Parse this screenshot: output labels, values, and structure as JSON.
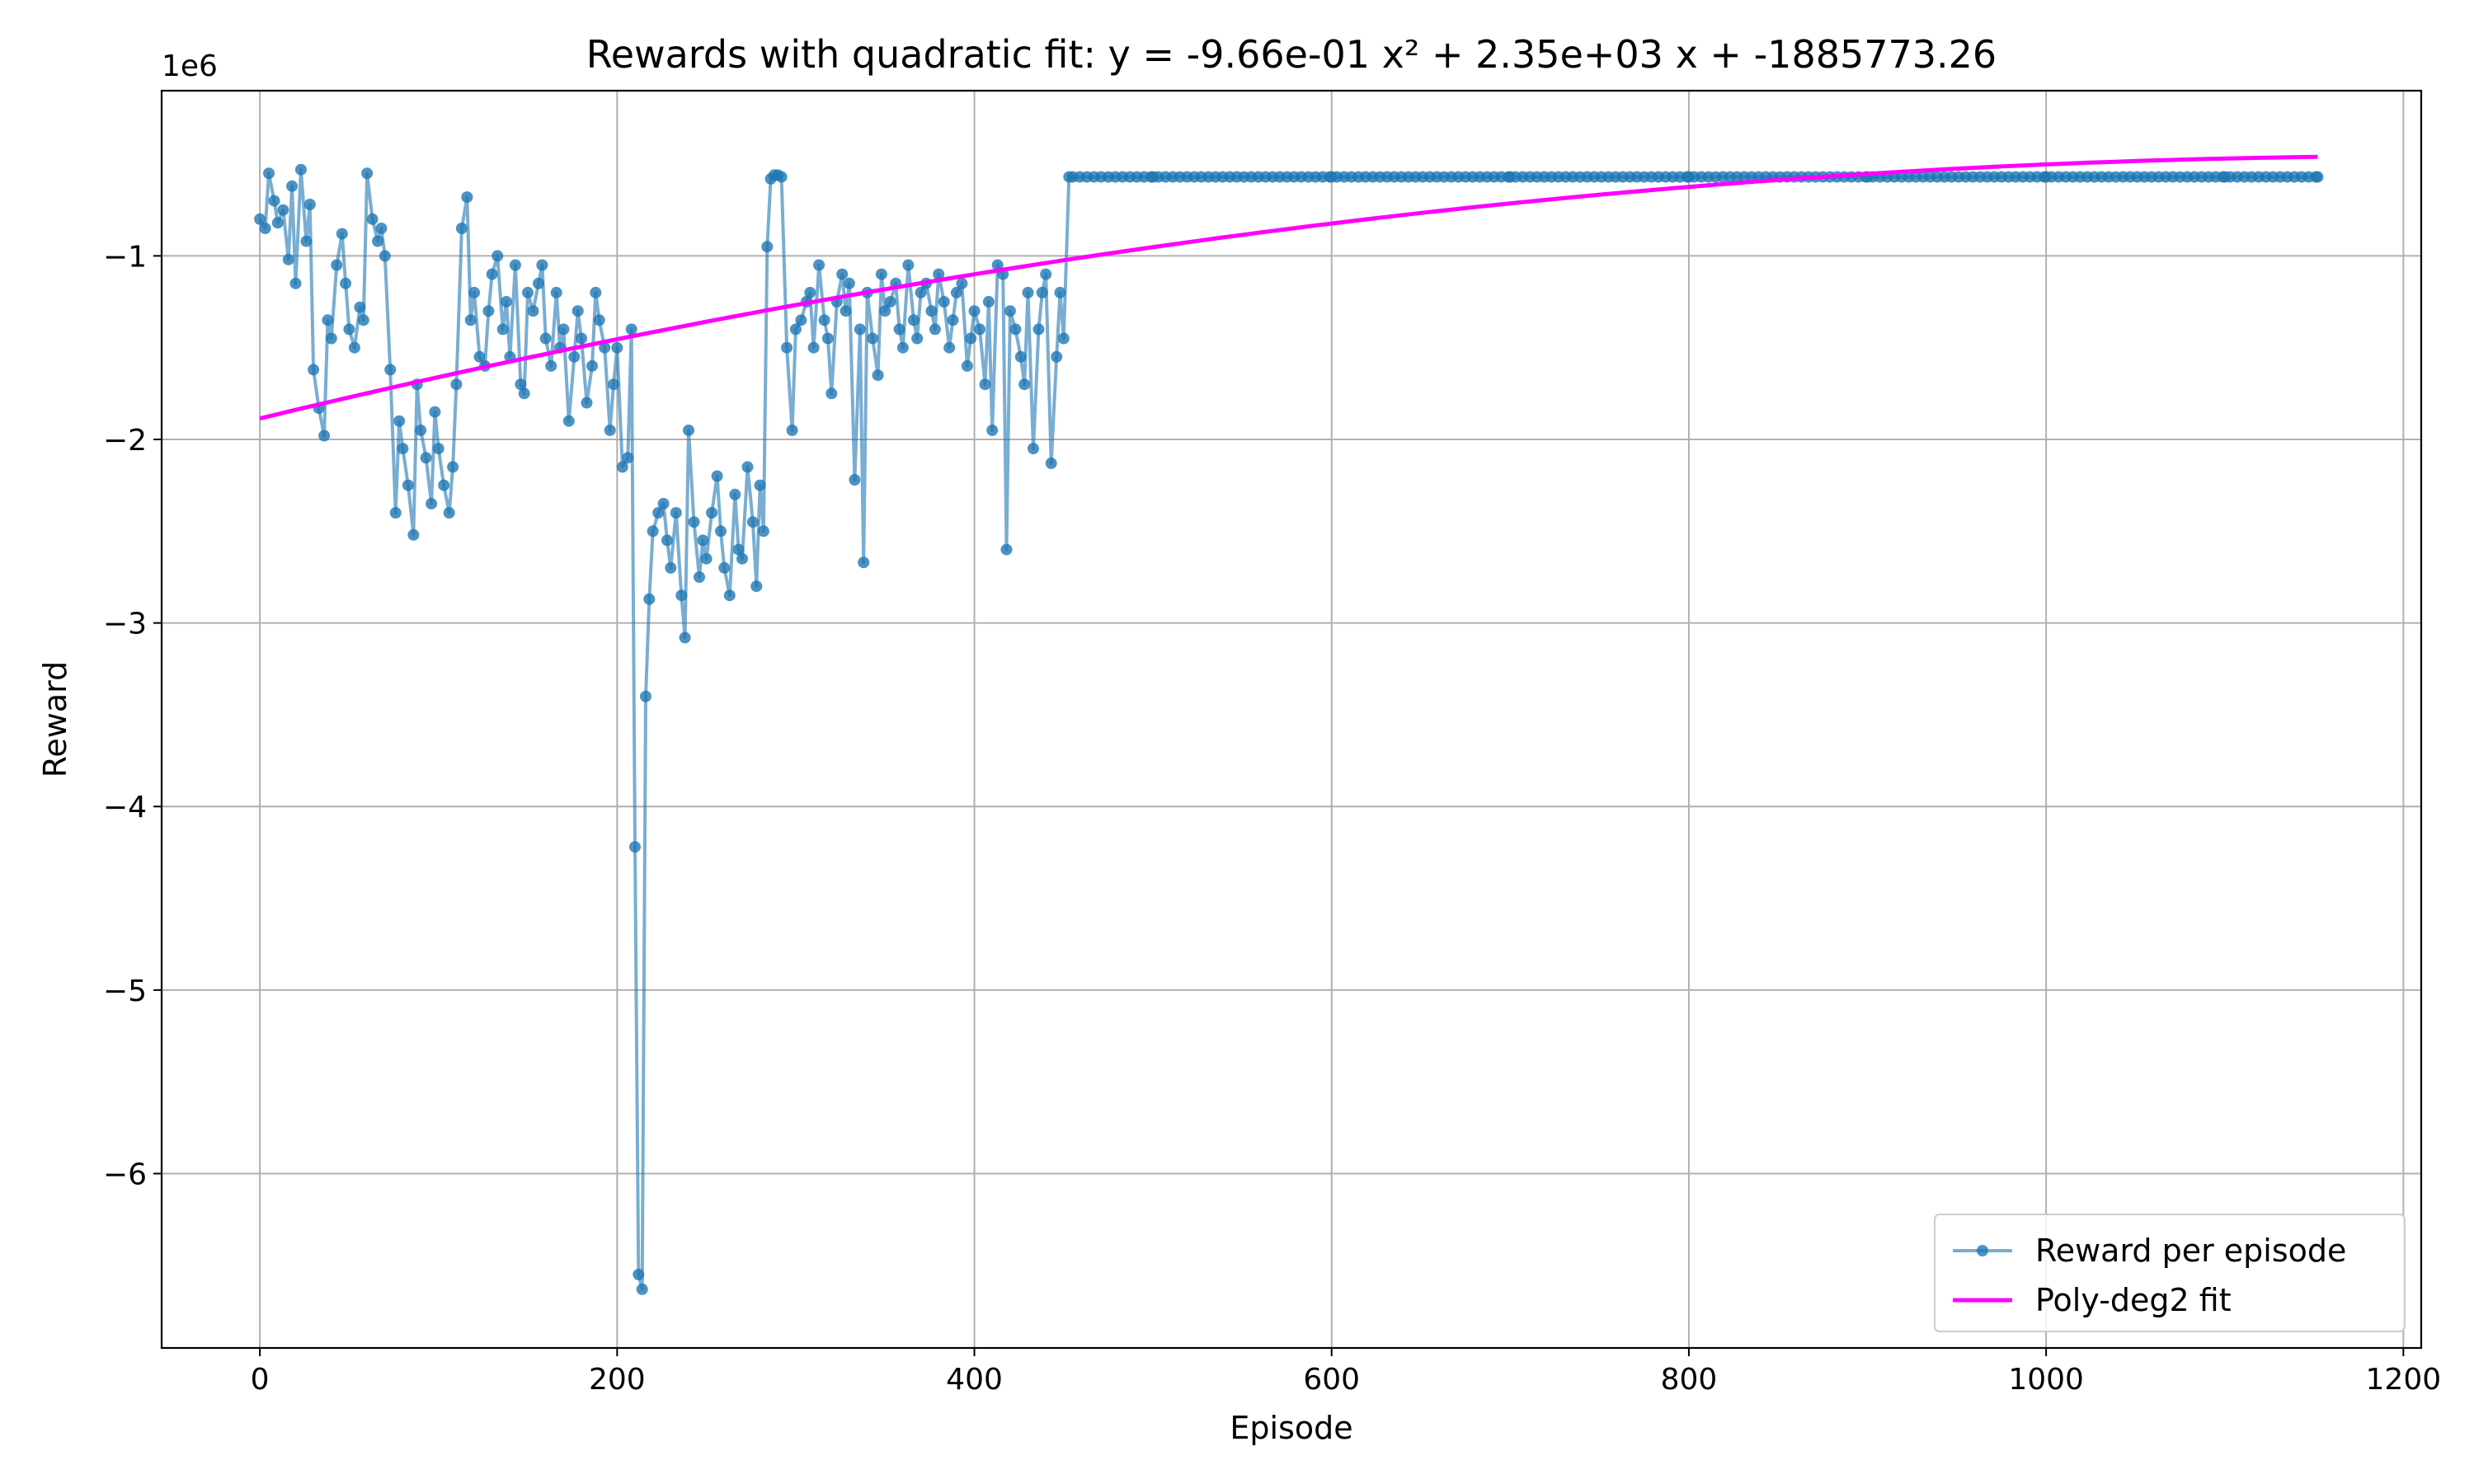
{
  "chart_data": {
    "type": "line",
    "title": "Rewards with quadratic fit: y = -9.66e-01 x² + 2.35e+03 x + -1885773.26",
    "xlabel": "Episode",
    "ylabel": "Reward",
    "y_offset_label": "1e6",
    "y_scale": 1000000,
    "xlim": [
      -55,
      1210
    ],
    "ylim": [
      -6.95,
      -0.1
    ],
    "x_ticks": [
      0,
      200,
      400,
      600,
      800,
      1000,
      1200
    ],
    "x_tick_labels": [
      "0",
      "200",
      "400",
      "600",
      "800",
      "1000",
      "1200"
    ],
    "y_ticks": [
      -1,
      -2,
      -3,
      -4,
      -5,
      -6
    ],
    "y_tick_labels": [
      "−1",
      "−2",
      "−3",
      "−4",
      "−5",
      "−6"
    ],
    "grid": true,
    "legend_position": "lower right",
    "colors": {
      "reward": "#1f77b4",
      "fit": "#ff00ff",
      "grid": "#b0b0b0"
    },
    "legend": [
      {
        "label": "Reward per episode",
        "style": "line-marker"
      },
      {
        "label": "Poly-deg2 fit",
        "style": "line"
      }
    ],
    "series": [
      {
        "name": "Reward per episode",
        "color": "#1f77b4",
        "x": [
          0,
          3,
          5,
          8,
          10,
          13,
          16,
          18,
          20,
          23,
          26,
          28,
          30,
          33,
          36,
          38,
          40,
          43,
          46,
          48,
          50,
          53,
          56,
          58,
          60,
          63,
          66,
          68,
          70,
          73,
          76,
          78,
          80,
          83,
          86,
          88,
          90,
          93,
          96,
          98,
          100,
          103,
          106,
          108,
          110,
          113,
          116,
          118,
          120,
          123,
          126,
          128,
          130,
          133,
          136,
          138,
          140,
          143,
          146,
          148,
          150,
          153,
          156,
          158,
          160,
          163,
          166,
          168,
          170,
          173,
          176,
          178,
          180,
          183,
          186,
          188,
          190,
          193,
          196,
          198,
          200,
          203,
          206,
          208,
          210,
          212,
          214,
          216,
          218,
          220,
          223,
          226,
          228,
          230,
          233,
          236,
          238,
          240,
          243,
          246,
          248,
          250,
          253,
          256,
          258,
          260,
          263,
          266,
          268,
          270,
          273,
          276,
          278,
          280,
          282,
          284,
          286,
          288,
          290,
          292,
          295,
          298,
          300,
          303,
          306,
          308,
          310,
          313,
          316,
          318,
          320,
          323,
          326,
          328,
          330,
          333,
          336,
          338,
          340,
          343,
          346,
          348,
          350,
          353,
          356,
          358,
          360,
          363,
          366,
          368,
          370,
          373,
          376,
          378,
          380,
          383,
          386,
          388,
          390,
          393,
          396,
          398,
          400,
          403,
          406,
          408,
          410,
          413,
          416,
          418,
          420,
          423,
          426,
          428,
          430,
          433,
          436,
          438,
          440,
          443,
          446,
          448,
          450,
          453,
          500,
          600,
          700,
          800,
          900,
          1000,
          1100,
          1152
        ],
        "y": [
          -0.8,
          -0.85,
          -0.55,
          -0.7,
          -0.82,
          -0.75,
          -1.02,
          -0.62,
          -1.15,
          -0.53,
          -0.92,
          -0.72,
          -1.62,
          -1.83,
          -1.98,
          -1.35,
          -1.45,
          -1.05,
          -0.88,
          -1.15,
          -1.4,
          -1.5,
          -1.28,
          -1.35,
          -0.55,
          -0.8,
          -0.92,
          -0.85,
          -1.0,
          -1.62,
          -2.4,
          -1.9,
          -2.05,
          -2.25,
          -2.52,
          -1.7,
          -1.95,
          -2.1,
          -2.35,
          -1.85,
          -2.05,
          -2.25,
          -2.4,
          -2.15,
          -1.7,
          -0.85,
          -0.68,
          -1.35,
          -1.2,
          -1.55,
          -1.6,
          -1.3,
          -1.1,
          -1.0,
          -1.4,
          -1.25,
          -1.55,
          -1.05,
          -1.7,
          -1.75,
          -1.2,
          -1.3,
          -1.15,
          -1.05,
          -1.45,
          -1.6,
          -1.2,
          -1.5,
          -1.4,
          -1.9,
          -1.55,
          -1.3,
          -1.45,
          -1.8,
          -1.6,
          -1.2,
          -1.35,
          -1.5,
          -1.95,
          -1.7,
          -1.5,
          -2.15,
          -2.1,
          -1.4,
          -4.22,
          -6.55,
          -6.63,
          -3.4,
          -2.87,
          -2.5,
          -2.4,
          -2.35,
          -2.55,
          -2.7,
          -2.4,
          -2.85,
          -3.08,
          -1.95,
          -2.45,
          -2.75,
          -2.55,
          -2.65,
          -2.4,
          -2.2,
          -2.5,
          -2.7,
          -2.85,
          -2.3,
          -2.6,
          -2.65,
          -2.15,
          -2.45,
          -2.8,
          -2.25,
          -2.5,
          -0.95,
          -0.58,
          -0.56,
          -0.56,
          -0.57,
          -1.5,
          -1.95,
          -1.4,
          -1.35,
          -1.25,
          -1.2,
          -1.5,
          -1.05,
          -1.35,
          -1.45,
          -1.75,
          -1.25,
          -1.1,
          -1.3,
          -1.15,
          -2.22,
          -1.4,
          -2.67,
          -1.2,
          -1.45,
          -1.65,
          -1.1,
          -1.3,
          -1.25,
          -1.15,
          -1.4,
          -1.5,
          -1.05,
          -1.35,
          -1.45,
          -1.2,
          -1.15,
          -1.3,
          -1.4,
          -1.1,
          -1.25,
          -1.5,
          -1.35,
          -1.2,
          -1.15,
          -1.6,
          -1.45,
          -1.3,
          -1.4,
          -1.7,
          -1.25,
          -1.95,
          -1.05,
          -1.1,
          -2.6,
          -1.3,
          -1.4,
          -1.55,
          -1.7,
          -1.2,
          -2.05,
          -1.4,
          -1.2,
          -1.1,
          -2.13,
          -1.55,
          -1.2,
          -1.45,
          -0.57,
          -0.57,
          -0.57,
          -0.57,
          -0.57,
          -0.57,
          -0.57,
          -0.57,
          -0.57
        ]
      },
      {
        "name": "Poly-deg2 fit",
        "color": "#ff00ff",
        "coefficients": [
          -0.966,
          2350,
          -1885773.26
        ],
        "x_range": [
          0,
          1152
        ]
      }
    ]
  }
}
